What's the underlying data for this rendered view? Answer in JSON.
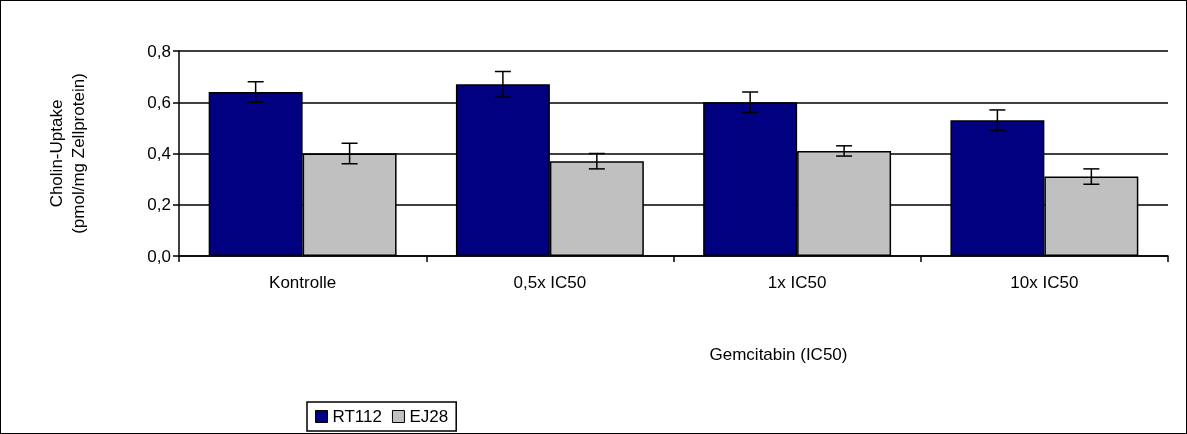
{
  "chart_data": {
    "type": "bar",
    "xlabel": "Gemcitabin (IC50)",
    "ylabel": "Cholin-Uptake\n(pmol/mg Zellprotein)",
    "categories": [
      "Kontrolle",
      "0,5x IC50",
      "1x IC50",
      "10x IC50"
    ],
    "series": [
      {
        "name": "RT112",
        "color": "#000080",
        "values": [
          0.64,
          0.67,
          0.6,
          0.53
        ],
        "errors": [
          0.04,
          0.05,
          0.04,
          0.04
        ]
      },
      {
        "name": "EJ28",
        "color": "#c0c0c0",
        "values": [
          0.4,
          0.37,
          0.41,
          0.31
        ],
        "errors": [
          0.04,
          0.03,
          0.02,
          0.03
        ]
      }
    ],
    "ylim": [
      0,
      0.8
    ],
    "yticks": [
      {
        "value": 0,
        "label": "0,0"
      },
      {
        "value": 0.2,
        "label": "0,2"
      },
      {
        "value": 0.4,
        "label": "0,4"
      },
      {
        "value": 0.6,
        "label": "0,6"
      },
      {
        "value": 0.8,
        "label": "0,8"
      }
    ],
    "grid": "y",
    "legend": "bottom left"
  }
}
